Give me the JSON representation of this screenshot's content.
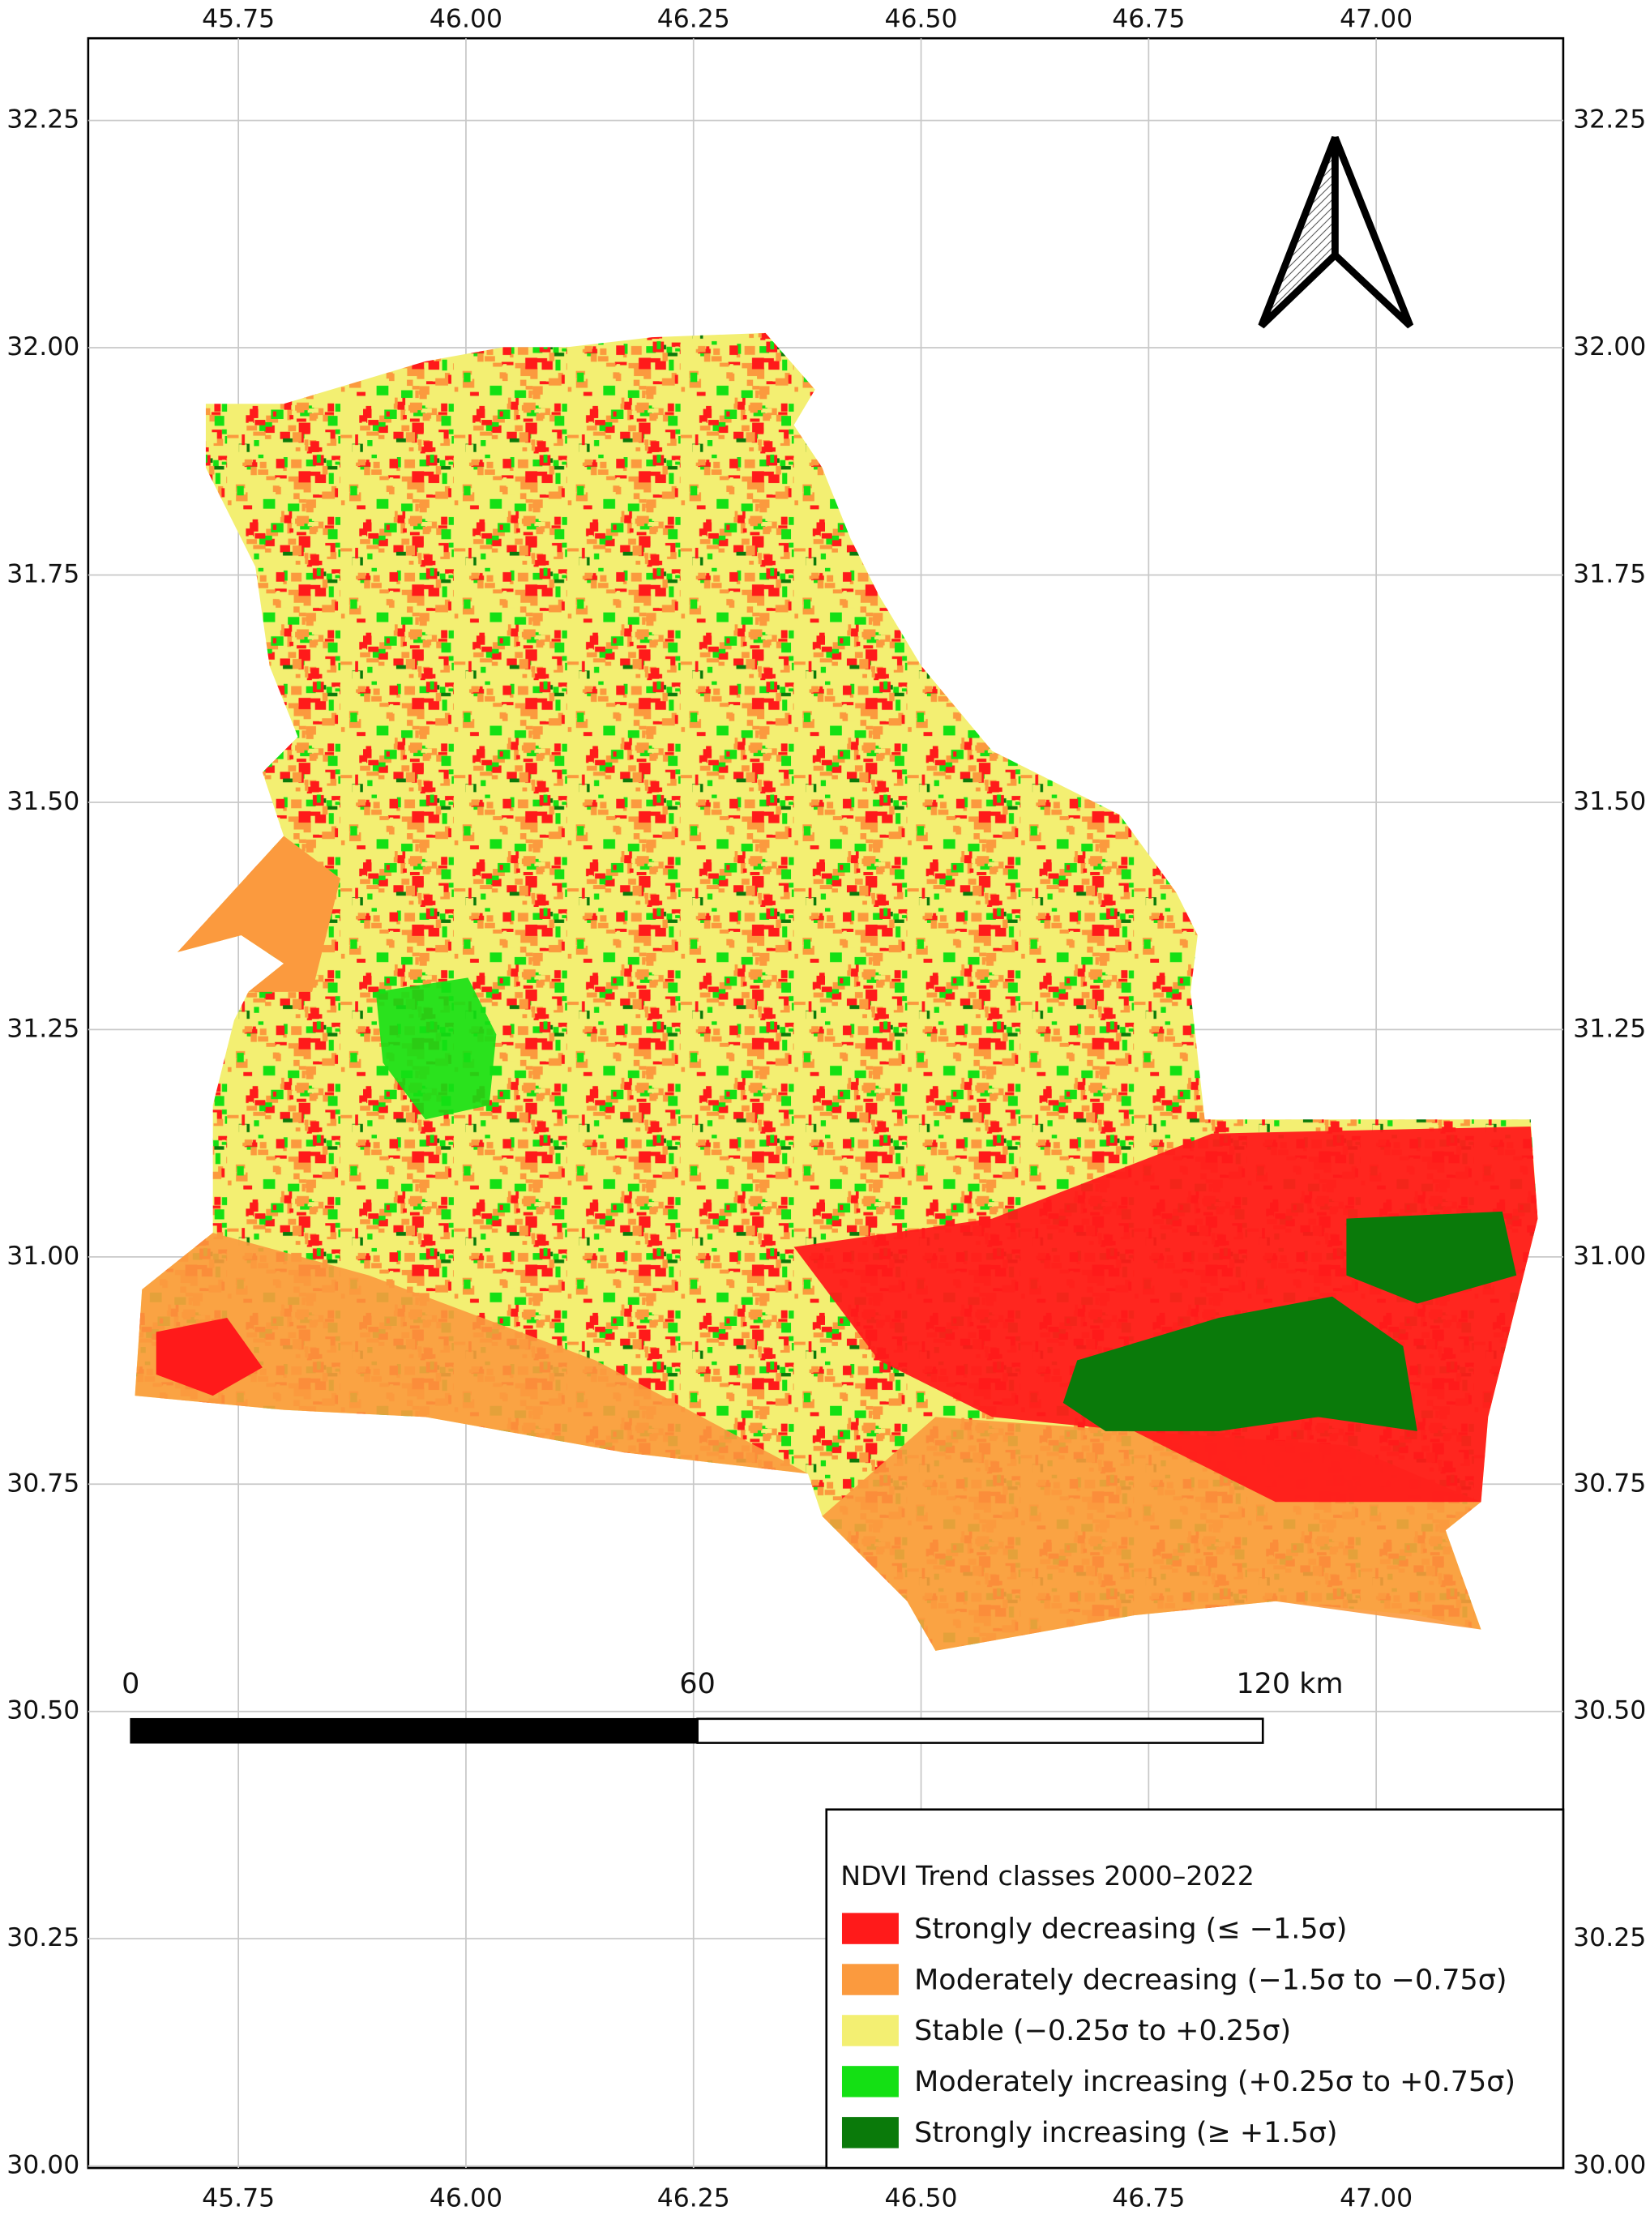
{
  "map": {
    "lon_ticks": [
      "45.75",
      "46.00",
      "46.25",
      "46.50",
      "46.75",
      "47.00"
    ],
    "lat_ticks": [
      "32.25",
      "32.00",
      "31.75",
      "31.50",
      "31.25",
      "31.00",
      "30.75",
      "30.50",
      "30.25",
      "30.00"
    ],
    "scale_bar": {
      "labels": [
        "0",
        "60",
        "120 km"
      ]
    },
    "legend": {
      "title": "NDVI Trend classes 2000–2022",
      "items": [
        {
          "label": "Strongly decreasing (≤ −1.5σ)",
          "color": "#ff1a1a"
        },
        {
          "label": "Moderately decreasing (−1.5σ to −0.75σ)",
          "color": "#fb9a3e"
        },
        {
          "label": "Stable (−0.25σ to +0.25σ)",
          "color": "#f3ef72"
        },
        {
          "label": "Moderately increasing (+0.25σ to +0.75σ)",
          "color": "#14e014"
        },
        {
          "label": "Strongly increasing (≥ +1.5σ)",
          "color": "#0a7a0a"
        }
      ]
    }
  }
}
